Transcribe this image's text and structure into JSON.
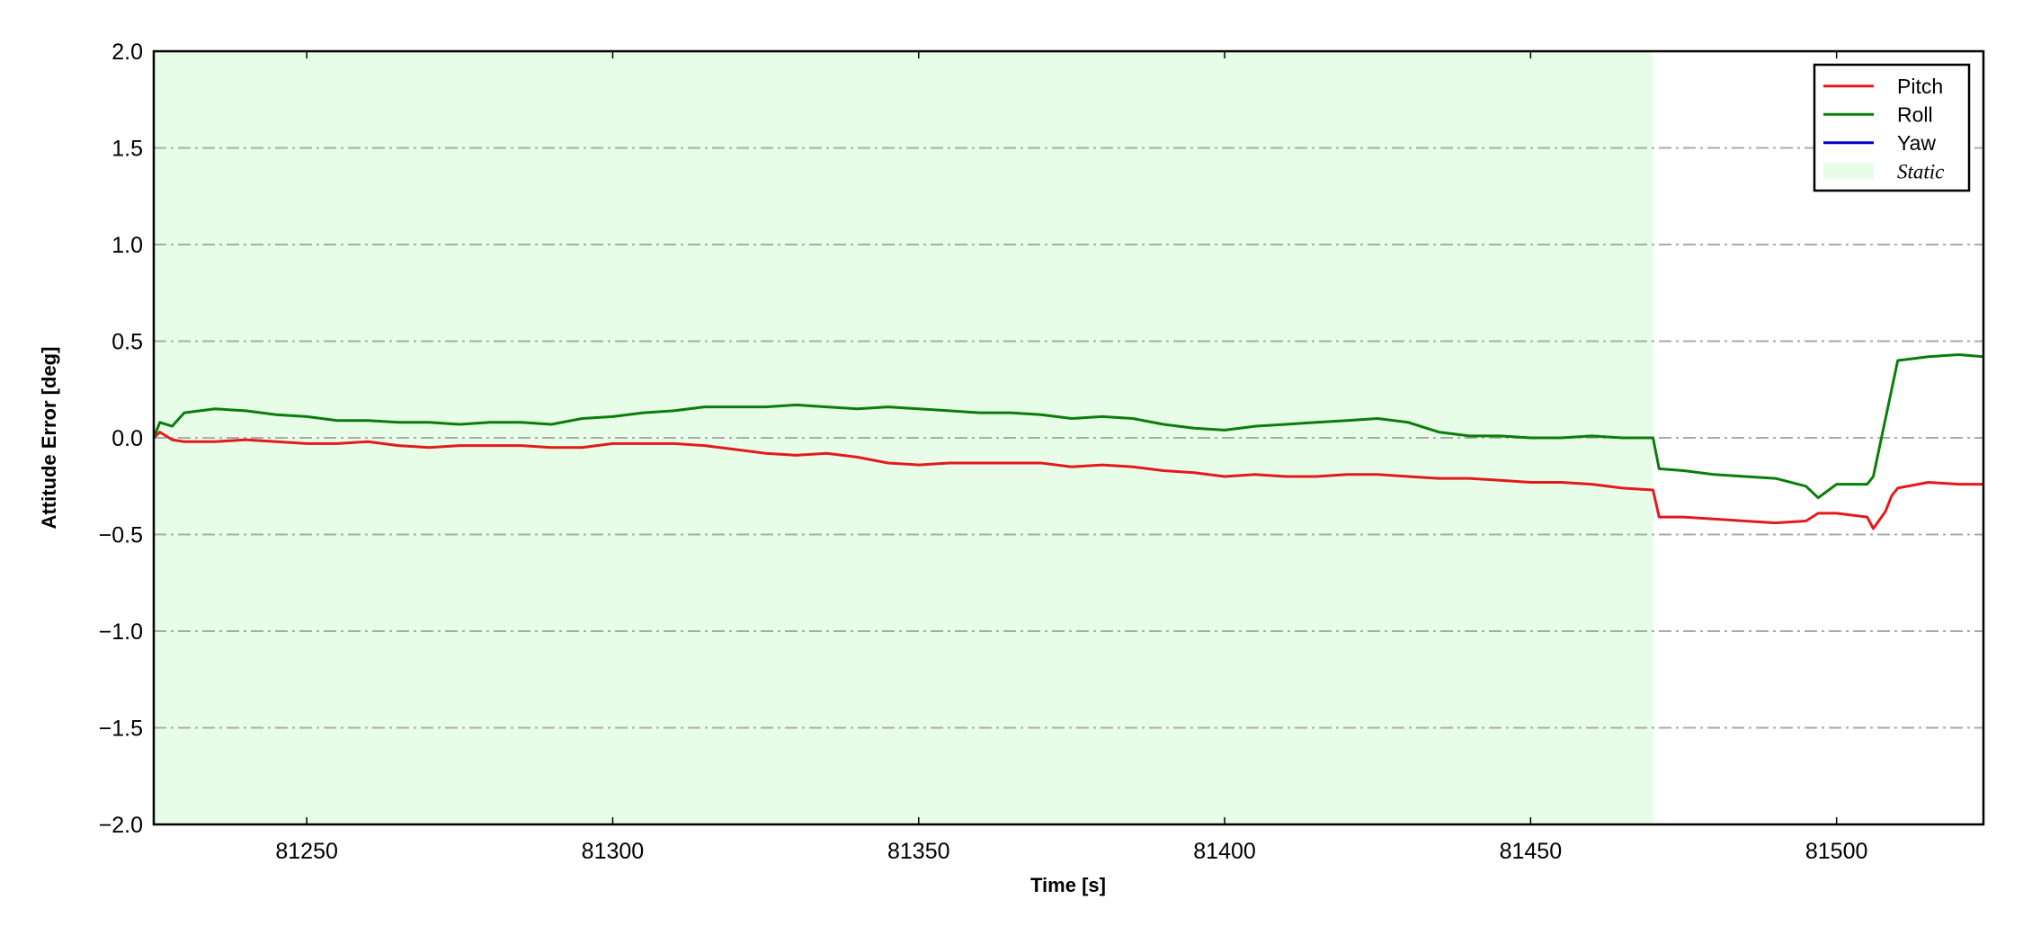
{
  "chart_data": {
    "type": "line",
    "xlabel": "Time [s]",
    "ylabel": "Attitude Error [deg]",
    "x": [
      81225,
      81226,
      81228,
      81230,
      81235,
      81240,
      81245,
      81250,
      81255,
      81260,
      81265,
      81270,
      81275,
      81280,
      81285,
      81290,
      81295,
      81300,
      81305,
      81310,
      81315,
      81320,
      81325,
      81330,
      81335,
      81340,
      81345,
      81350,
      81355,
      81360,
      81365,
      81370,
      81375,
      81380,
      81385,
      81390,
      81395,
      81400,
      81405,
      81410,
      81415,
      81420,
      81425,
      81430,
      81435,
      81440,
      81445,
      81450,
      81455,
      81460,
      81465,
      81470,
      81471,
      81475,
      81480,
      81485,
      81490,
      81495,
      81497,
      81500,
      81505,
      81506,
      81508,
      81509,
      81510,
      81515,
      81520,
      81524
    ],
    "series": [
      {
        "name": "Pitch",
        "color": "#e31a1c",
        "values": [
          0.0,
          0.03,
          -0.01,
          -0.02,
          -0.02,
          -0.01,
          -0.02,
          -0.03,
          -0.03,
          -0.02,
          -0.04,
          -0.05,
          -0.04,
          -0.04,
          -0.04,
          -0.05,
          -0.05,
          -0.03,
          -0.03,
          -0.03,
          -0.04,
          -0.06,
          -0.08,
          -0.09,
          -0.08,
          -0.1,
          -0.13,
          -0.14,
          -0.13,
          -0.13,
          -0.13,
          -0.13,
          -0.15,
          -0.14,
          -0.15,
          -0.17,
          -0.18,
          -0.2,
          -0.19,
          -0.2,
          -0.2,
          -0.19,
          -0.19,
          -0.2,
          -0.21,
          -0.21,
          -0.22,
          -0.23,
          -0.23,
          -0.24,
          -0.26,
          -0.27,
          -0.41,
          -0.41,
          -0.42,
          -0.43,
          -0.44,
          -0.43,
          -0.39,
          -0.39,
          -0.41,
          -0.47,
          -0.38,
          -0.3,
          -0.26,
          -0.23,
          -0.24,
          -0.24
        ]
      },
      {
        "name": "Roll",
        "color": "#0a7d0a",
        "values": [
          0.0,
          0.08,
          0.06,
          0.13,
          0.15,
          0.14,
          0.12,
          0.11,
          0.09,
          0.09,
          0.08,
          0.08,
          0.07,
          0.08,
          0.08,
          0.07,
          0.1,
          0.11,
          0.13,
          0.14,
          0.16,
          0.16,
          0.16,
          0.17,
          0.16,
          0.15,
          0.16,
          0.15,
          0.14,
          0.13,
          0.13,
          0.12,
          0.1,
          0.11,
          0.1,
          0.07,
          0.05,
          0.04,
          0.06,
          0.07,
          0.08,
          0.09,
          0.1,
          0.08,
          0.03,
          0.01,
          0.01,
          0.0,
          0.0,
          0.01,
          0.0,
          0.0,
          -0.16,
          -0.17,
          -0.19,
          -0.2,
          -0.21,
          -0.25,
          -0.31,
          -0.24,
          -0.24,
          -0.2,
          0.1,
          0.25,
          0.4,
          0.42,
          0.43,
          0.42
        ]
      },
      {
        "name": "Yaw",
        "color": "#0000cc",
        "values": [
          null,
          null,
          null,
          null,
          null,
          null,
          null,
          null,
          null,
          null,
          null,
          null,
          null,
          null,
          null,
          null,
          null,
          null,
          null,
          null,
          null,
          null,
          null,
          null,
          null,
          null,
          null,
          null,
          null,
          null,
          null,
          null,
          null,
          null,
          null,
          null,
          null,
          null,
          null,
          null,
          null,
          null,
          null,
          null,
          null,
          null,
          null,
          null,
          null,
          null,
          null,
          null,
          null,
          null,
          null,
          null,
          null,
          null,
          null,
          null,
          null,
          null,
          null,
          null,
          null,
          null,
          null,
          null
        ]
      }
    ],
    "shade": {
      "name": "Static",
      "color": "#e8fde8",
      "x": [
        81225,
        81470
      ]
    },
    "xlim": [
      81225,
      81524
    ],
    "xticks": [
      81250,
      81300,
      81350,
      81400,
      81450,
      81500
    ],
    "ylim": [
      -2,
      2
    ],
    "yticks": [
      {
        "value": -2,
        "label": "−2.0"
      },
      {
        "value": -1.5,
        "label": "−1.5"
      },
      {
        "value": -1,
        "label": "−1.0"
      },
      {
        "value": -0.5,
        "label": "−0.5"
      },
      {
        "value": 0,
        "label": "0.0"
      },
      0.5,
      {
        "value": 1,
        "label": "1.0"
      },
      1.5,
      {
        "value": 2,
        "label": "2.0"
      }
    ],
    "grid": "y",
    "legend": "upper right"
  }
}
